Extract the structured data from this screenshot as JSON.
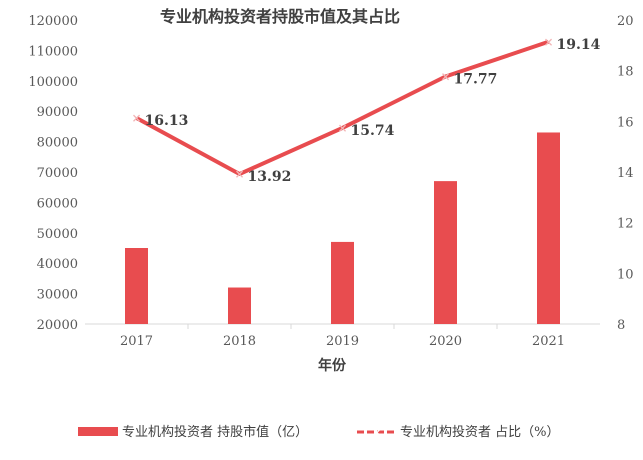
{
  "chart_data": {
    "type": "bar+line",
    "title": "专业机构投资者持股市值及其占比",
    "xlabel": "年份",
    "categories": [
      "2017",
      "2018",
      "2019",
      "2020",
      "2021"
    ],
    "series": [
      {
        "name": "专业机构投资者 持股市值（亿）",
        "type": "bar",
        "axis": "left",
        "color": "#e84c4f",
        "values": [
          45000,
          32000,
          47000,
          67000,
          83000
        ]
      },
      {
        "name": "专业机构投资者 占比（%）",
        "type": "line",
        "axis": "right",
        "color": "#e84c4f",
        "values": [
          16.13,
          13.92,
          15.74,
          17.77,
          19.14
        ],
        "labels": [
          "16.13",
          "13.92",
          "15.74",
          "17.77",
          "19.14"
        ]
      }
    ],
    "y_left": {
      "min": 20000,
      "max": 120000,
      "ticks": [
        "20000",
        "30000",
        "40000",
        "50000",
        "60000",
        "70000",
        "80000",
        "90000",
        "100000",
        "110000",
        "120000"
      ]
    },
    "y_right": {
      "min": 8,
      "max": 20,
      "ticks": [
        "8",
        "10",
        "12",
        "14",
        "16",
        "18",
        "20"
      ]
    },
    "grid": false,
    "legend_position": "bottom"
  }
}
